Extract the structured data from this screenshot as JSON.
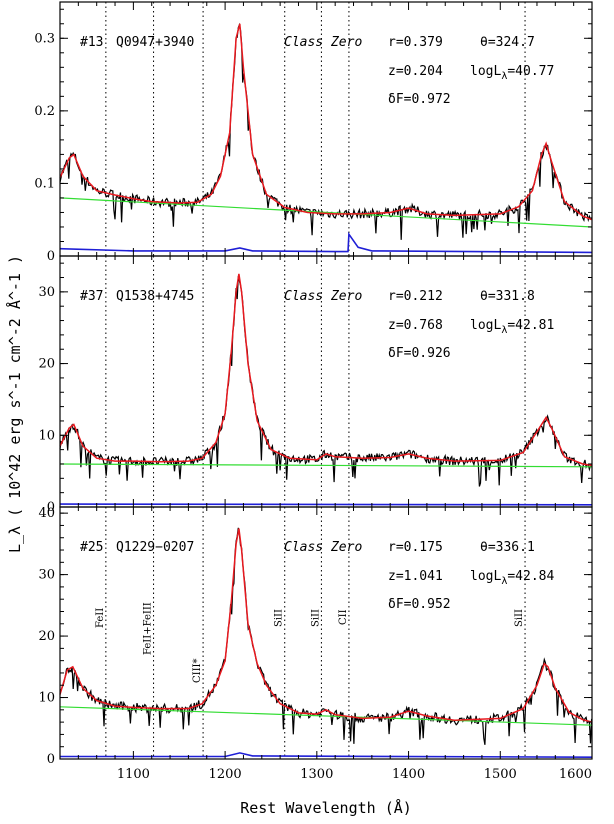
{
  "chart_data": {
    "type": "line",
    "xlabel": "Rest Wavelength (Å)",
    "ylabel": "L_λ ( 10^42 erg s^-1 cm^-2 Å^-1 )",
    "xlim": [
      1020,
      1600
    ],
    "x_ticks": [
      "1100",
      "1200",
      "1300",
      "1400",
      "1500",
      "1600"
    ],
    "line_markers": [
      {
        "x": 1070,
        "label": "FeII"
      },
      {
        "x": 1122,
        "label": "FeII+FeIII"
      },
      {
        "x": 1176,
        "label": "CIII*"
      },
      {
        "x": 1265,
        "label": "SiII"
      },
      {
        "x": 1305,
        "label": "SiII"
      },
      {
        "x": 1335,
        "label": "CII"
      },
      {
        "x": 1527,
        "label": "SiII"
      }
    ],
    "panels": [
      {
        "id": "#13",
        "name": "Q0947+3940",
        "class_label": "Class Zero",
        "r": "r=0.379",
        "theta": "θ=324.7",
        "z": "z=0.204",
        "logL": "logL",
        "logL_sub": "λ",
        "logL_val": "=40.77",
        "dF": "δF=0.972",
        "ylim": [
          0,
          0.35
        ],
        "y_ticks": [
          0,
          0.1,
          0.2,
          0.3
        ],
        "y_tick_labels": [
          "0",
          "0.1",
          "0.2",
          "0.3"
        ],
        "continuum": [
          [
            1020,
            0.08
          ],
          [
            1600,
            0.04
          ]
        ],
        "model": [
          [
            1020,
            0.108
          ],
          [
            1030,
            0.135
          ],
          [
            1035,
            0.14
          ],
          [
            1045,
            0.11
          ],
          [
            1060,
            0.09
          ],
          [
            1080,
            0.084
          ],
          [
            1100,
            0.079
          ],
          [
            1120,
            0.075
          ],
          [
            1150,
            0.073
          ],
          [
            1170,
            0.074
          ],
          [
            1185,
            0.085
          ],
          [
            1195,
            0.11
          ],
          [
            1205,
            0.17
          ],
          [
            1212,
            0.3
          ],
          [
            1216,
            0.32
          ],
          [
            1220,
            0.26
          ],
          [
            1230,
            0.14
          ],
          [
            1245,
            0.085
          ],
          [
            1265,
            0.067
          ],
          [
            1290,
            0.06
          ],
          [
            1320,
            0.058
          ],
          [
            1350,
            0.058
          ],
          [
            1380,
            0.06
          ],
          [
            1400,
            0.066
          ],
          [
            1420,
            0.058
          ],
          [
            1450,
            0.056
          ],
          [
            1500,
            0.058
          ],
          [
            1520,
            0.068
          ],
          [
            1535,
            0.09
          ],
          [
            1545,
            0.14
          ],
          [
            1550,
            0.155
          ],
          [
            1556,
            0.13
          ],
          [
            1570,
            0.075
          ],
          [
            1590,
            0.055
          ],
          [
            1600,
            0.05
          ]
        ],
        "error": [
          [
            1020,
            0.01
          ],
          [
            1100,
            0.007
          ],
          [
            1200,
            0.007
          ],
          [
            1216,
            0.011
          ],
          [
            1230,
            0.007
          ],
          [
            1320,
            0.006
          ],
          [
            1334,
            0.006
          ],
          [
            1335,
            0.03
          ],
          [
            1345,
            0.012
          ],
          [
            1360,
            0.007
          ],
          [
            1600,
            0.005
          ]
        ]
      },
      {
        "id": "#37",
        "name": "Q1538+4745",
        "class_label": "Class Zero",
        "r": "r=0.212",
        "theta": "θ=331.8",
        "z": "z=0.768",
        "logL": "logL",
        "logL_sub": "λ",
        "logL_val": "=42.81",
        "dF": "δF=0.926",
        "ylim": [
          0,
          35
        ],
        "y_ticks": [
          0,
          10,
          20,
          30
        ],
        "y_tick_labels": [
          "0",
          "10",
          "20",
          "30"
        ],
        "continuum": [
          [
            1020,
            6.0
          ],
          [
            1600,
            5.6
          ]
        ],
        "model": [
          [
            1020,
            8.5
          ],
          [
            1030,
            11.0
          ],
          [
            1035,
            11.5
          ],
          [
            1045,
            8.5
          ],
          [
            1060,
            6.8
          ],
          [
            1080,
            6.4
          ],
          [
            1100,
            6.4
          ],
          [
            1130,
            6.3
          ],
          [
            1160,
            6.4
          ],
          [
            1175,
            6.8
          ],
          [
            1190,
            9.0
          ],
          [
            1200,
            13.0
          ],
          [
            1207,
            22.0
          ],
          [
            1212,
            30.0
          ],
          [
            1215,
            32.5
          ],
          [
            1218,
            30.0
          ],
          [
            1225,
            20.0
          ],
          [
            1235,
            12.0
          ],
          [
            1250,
            8.0
          ],
          [
            1270,
            6.8
          ],
          [
            1300,
            6.6
          ],
          [
            1310,
            7.4
          ],
          [
            1320,
            7.0
          ],
          [
            1350,
            6.8
          ],
          [
            1380,
            6.9
          ],
          [
            1400,
            7.4
          ],
          [
            1420,
            6.8
          ],
          [
            1450,
            6.4
          ],
          [
            1500,
            6.5
          ],
          [
            1525,
            7.6
          ],
          [
            1540,
            10.5
          ],
          [
            1550,
            12.5
          ],
          [
            1556,
            11.0
          ],
          [
            1570,
            7.0
          ],
          [
            1590,
            6.0
          ],
          [
            1600,
            5.8
          ]
        ],
        "error": [
          [
            1020,
            0.4
          ],
          [
            1600,
            0.3
          ]
        ]
      },
      {
        "id": "#25",
        "name": "Q1229−0207",
        "class_label": "Class Zero",
        "r": "r=0.175",
        "theta": "θ=336.1",
        "z": "z=1.041",
        "logL": "logL",
        "logL_sub": "λ",
        "logL_val": "=42.84",
        "dF": "δF=0.952",
        "ylim": [
          0,
          41
        ],
        "y_ticks": [
          0,
          10,
          20,
          30,
          40
        ],
        "y_tick_labels": [
          "0",
          "10",
          "20",
          "30",
          "40"
        ],
        "continuum": [
          [
            1020,
            8.5
          ],
          [
            1600,
            5.5
          ]
        ],
        "model": [
          [
            1020,
            10.5
          ],
          [
            1028,
            14.5
          ],
          [
            1034,
            15.0
          ],
          [
            1045,
            11.5
          ],
          [
            1060,
            9.5
          ],
          [
            1080,
            8.6
          ],
          [
            1100,
            8.4
          ],
          [
            1130,
            8.2
          ],
          [
            1160,
            8.2
          ],
          [
            1175,
            9.0
          ],
          [
            1190,
            12.0
          ],
          [
            1200,
            16.0
          ],
          [
            1207,
            26.0
          ],
          [
            1212,
            35.0
          ],
          [
            1215,
            37.5
          ],
          [
            1218,
            34.0
          ],
          [
            1225,
            22.0
          ],
          [
            1235,
            15.5
          ],
          [
            1245,
            12.0
          ],
          [
            1260,
            9.0
          ],
          [
            1280,
            7.5
          ],
          [
            1300,
            7.3
          ],
          [
            1310,
            8.0
          ],
          [
            1320,
            7.2
          ],
          [
            1350,
            6.6
          ],
          [
            1380,
            6.8
          ],
          [
            1400,
            7.8
          ],
          [
            1420,
            7.0
          ],
          [
            1450,
            6.3
          ],
          [
            1500,
            6.6
          ],
          [
            1525,
            8.2
          ],
          [
            1540,
            12.0
          ],
          [
            1548,
            15.5
          ],
          [
            1552,
            15.0
          ],
          [
            1560,
            11.5
          ],
          [
            1575,
            7.6
          ],
          [
            1590,
            6.4
          ],
          [
            1600,
            6.0
          ]
        ],
        "error": [
          [
            1020,
            0.4
          ],
          [
            1200,
            0.4
          ],
          [
            1216,
            1.0
          ],
          [
            1230,
            0.5
          ],
          [
            1600,
            0.3
          ]
        ]
      }
    ]
  }
}
